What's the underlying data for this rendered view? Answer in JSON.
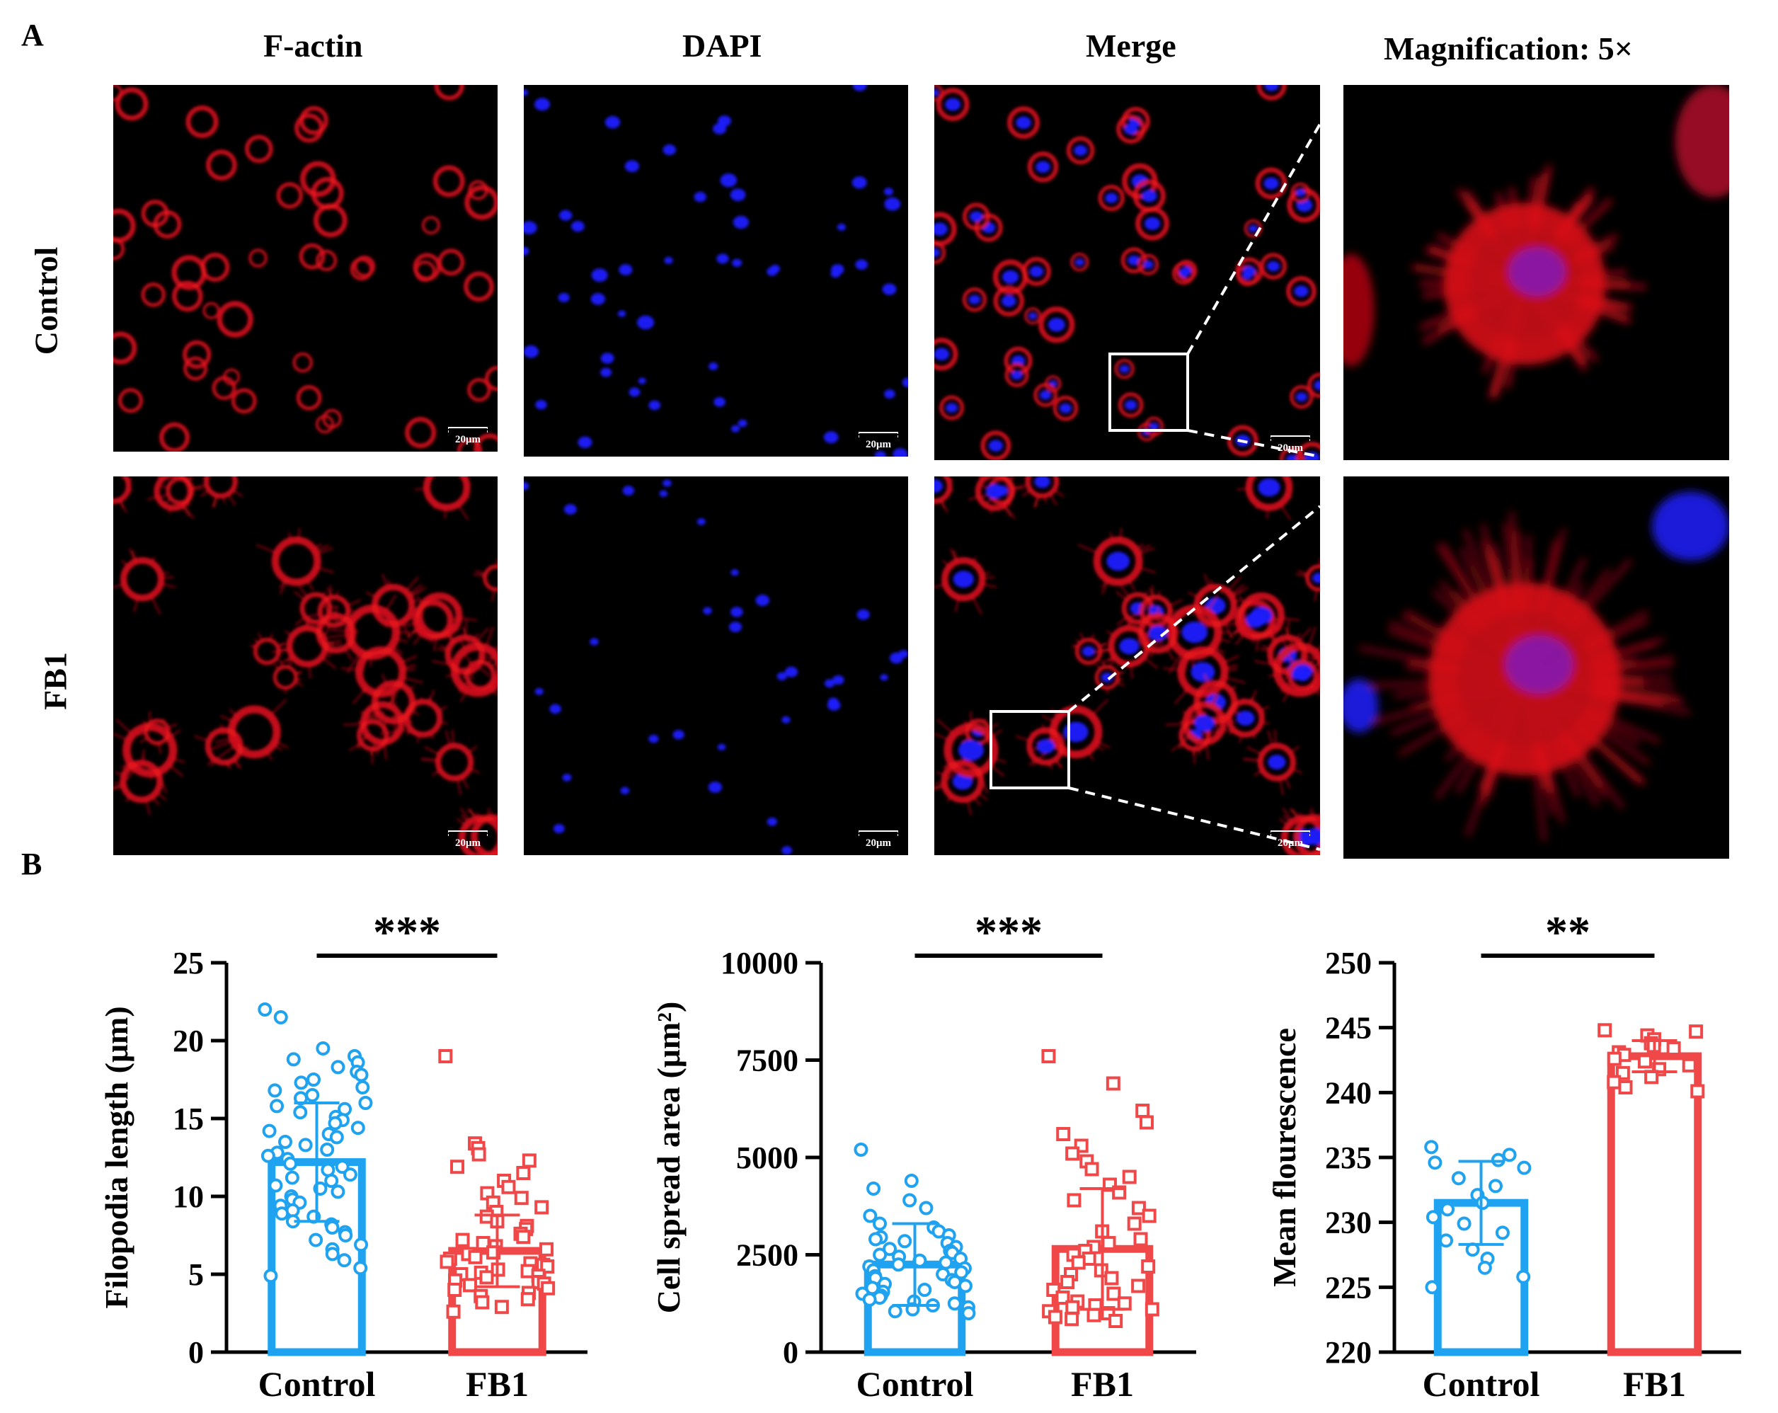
{
  "panel_labels": {
    "a": "A",
    "b": "B"
  },
  "columns": [
    "F-actin",
    "DAPI",
    "Merge",
    "Magnification:  5×"
  ],
  "rows": [
    "Control",
    "FB1"
  ],
  "scale_bar_label": "20μm",
  "colors": {
    "actin": "#e8131f",
    "dapi": "#1d1dff",
    "control": "#1fa3f0",
    "fb1": "#f04848"
  },
  "chart_data": [
    {
      "type": "bar",
      "categories": [
        "Control",
        "FB1"
      ],
      "values": [
        12.2,
        6.5
      ],
      "sd": [
        3.8,
        2.3
      ],
      "ylabel": "Filopodia length (μm)",
      "ylim": [
        0,
        25
      ],
      "yticks": [
        0,
        5,
        10,
        15,
        20,
        25
      ],
      "significance": "***",
      "points": {
        "Control": [
          22.0,
          21.5,
          19.5,
          19.0,
          18.8,
          18.6,
          18.3,
          18.0,
          17.8,
          17.5,
          17.3,
          17.0,
          16.8,
          16.5,
          16.3,
          16.0,
          15.8,
          15.6,
          15.4,
          15.1,
          14.9,
          14.7,
          14.4,
          14.2,
          14.0,
          13.8,
          13.5,
          13.3,
          13.0,
          12.8,
          12.6,
          12.4,
          12.1,
          11.9,
          11.7,
          11.4,
          11.2,
          11.0,
          10.7,
          10.5,
          10.3,
          10.0,
          9.8,
          9.6,
          9.4,
          9.1,
          8.9,
          8.7,
          8.4,
          8.2,
          8.0,
          7.7,
          7.5,
          7.2,
          6.9,
          6.6,
          6.3,
          5.9,
          5.4,
          4.9
        ],
        "FB1": [
          19.0,
          13.4,
          13.1,
          12.7,
          12.3,
          11.9,
          11.5,
          11.0,
          10.6,
          10.2,
          9.9,
          9.6,
          9.3,
          9.0,
          8.7,
          8.4,
          8.1,
          7.9,
          7.6,
          7.4,
          7.2,
          7.0,
          6.8,
          6.6,
          6.4,
          6.3,
          6.1,
          6.0,
          5.8,
          5.7,
          5.6,
          5.5,
          5.3,
          5.2,
          5.1,
          5.0,
          4.9,
          4.8,
          4.6,
          4.5,
          4.4,
          4.3,
          4.1,
          4.0,
          3.8,
          3.6,
          3.4,
          3.2,
          2.9,
          2.6
        ]
      }
    },
    {
      "type": "bar",
      "categories": [
        "Control",
        "FB1"
      ],
      "values": [
        2250,
        2650
      ],
      "sd": [
        1050,
        1550
      ],
      "ylabel": "Cell spread area (μm²)",
      "ylim": [
        0,
        10000
      ],
      "yticks": [
        0,
        2500,
        5000,
        7500,
        10000
      ],
      "significance": "***",
      "points": {
        "Control": [
          5200,
          4400,
          4200,
          3900,
          3700,
          3500,
          3300,
          3200,
          3100,
          3000,
          2950,
          2900,
          2850,
          2800,
          2700,
          2650,
          2600,
          2550,
          2500,
          2450,
          2400,
          2350,
          2300,
          2250,
          2200,
          2150,
          2100,
          2050,
          2000,
          1950,
          1900,
          1850,
          1800,
          1750,
          1700,
          1650,
          1600,
          1550,
          1500,
          1450,
          1400,
          1350,
          1300,
          1250,
          1200,
          1150,
          1100,
          1050,
          1000
        ],
        "FB1": [
          7600,
          6900,
          6200,
          5900,
          5600,
          5300,
          5100,
          4900,
          4700,
          4500,
          4300,
          4100,
          3900,
          3700,
          3500,
          3300,
          3100,
          2900,
          2800,
          2700,
          2600,
          2500,
          2400,
          2300,
          2200,
          2100,
          2000,
          1900,
          1800,
          1700,
          1600,
          1500,
          1400,
          1300,
          1250,
          1200,
          1150,
          1100,
          1050,
          1000,
          950,
          900,
          850,
          800
        ]
      }
    },
    {
      "type": "bar",
      "categories": [
        "Control",
        "FB1"
      ],
      "values": [
        231.5,
        242.8
      ],
      "sd": [
        3.2,
        1.2
      ],
      "ylabel": "Mean flourescence",
      "ylim": [
        220,
        250
      ],
      "yticks": [
        220,
        225,
        230,
        235,
        240,
        245,
        250
      ],
      "significance": "**",
      "points": {
        "Control": [
          235.8,
          235.2,
          234.8,
          234.6,
          234.2,
          233.4,
          232.8,
          232.1,
          231.5,
          231.0,
          230.4,
          229.9,
          229.2,
          228.6,
          227.9,
          227.2,
          226.5,
          225.8,
          225.0
        ],
        "FB1": [
          244.8,
          244.7,
          244.4,
          244.1,
          243.8,
          243.6,
          243.4,
          243.1,
          242.9,
          242.6,
          242.4,
          242.1,
          241.8,
          241.5,
          241.2,
          240.8,
          240.4,
          240.1
        ]
      }
    }
  ]
}
